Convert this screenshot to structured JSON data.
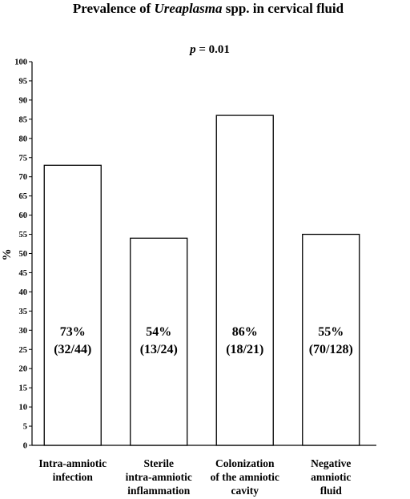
{
  "chart_data": {
    "type": "bar",
    "title_prefix": "Prevalence of ",
    "title_italic": "Ureaplasma",
    "title_suffix": " spp. in cervical fluid",
    "p_label_italic": "p",
    "p_label_rest": " = 0.01",
    "ylabel": "%",
    "ylim": [
      0,
      100
    ],
    "ytick_step": 5,
    "grid": false,
    "categories": [
      [
        "Intra-amniotic",
        "infection"
      ],
      [
        "Sterile",
        "intra-amniotic",
        "inflammation"
      ],
      [
        "Colonization",
        "of the amniotic",
        "cavity"
      ],
      [
        "Negative",
        "amniotic",
        "fluid"
      ]
    ],
    "values": [
      73,
      54,
      86,
      55
    ],
    "bar_labels": [
      [
        "73%",
        "(32/44)"
      ],
      [
        "54%",
        "(13/24)"
      ],
      [
        "86%",
        "(18/21)"
      ],
      [
        "55%",
        "(70/128)"
      ]
    ],
    "bar_color": "#ffffff",
    "edge_color": "#000000"
  }
}
